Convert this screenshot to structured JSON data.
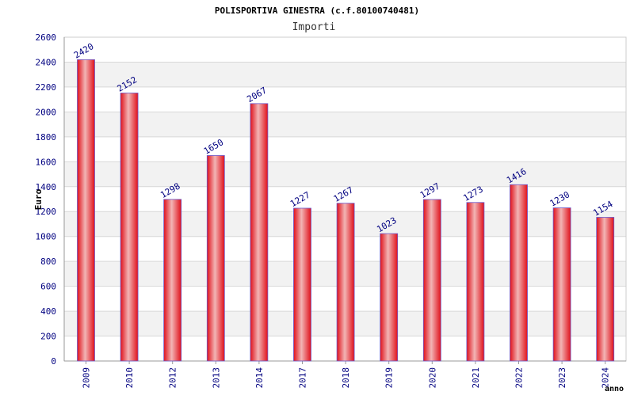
{
  "chart_data": {
    "type": "bar",
    "title": "POLISPORTIVA GINESTRA (c.f.80100740481)",
    "subtitle": "Importi",
    "xlabel": "anno",
    "ylabel": "Euro",
    "categories": [
      "2009",
      "2010",
      "2012",
      "2013",
      "2014",
      "2017",
      "2018",
      "2019",
      "2020",
      "2021",
      "2022",
      "2023",
      "2024"
    ],
    "values": [
      2420,
      2152,
      1298,
      1650,
      2067,
      1227,
      1267,
      1023,
      1297,
      1273,
      1416,
      1230,
      1154
    ],
    "ylim": [
      0,
      2600
    ],
    "yticks": [
      0,
      200,
      400,
      600,
      800,
      1000,
      1200,
      1400,
      1600,
      1800,
      2000,
      2200,
      2400,
      2600
    ],
    "grid": true,
    "colors": {
      "bar_center": "#f2b5b5",
      "bar_edge": "#e0101a",
      "bar_outline": "#6a5acd",
      "label_text": "#000080",
      "band": "#f2f2f2",
      "gridline": "#d8d8d8",
      "axis_text": "#000080"
    }
  }
}
